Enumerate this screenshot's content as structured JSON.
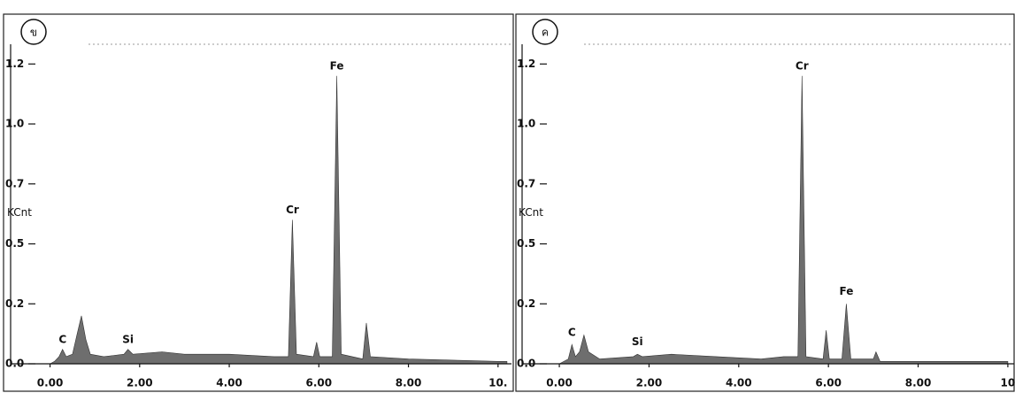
{
  "chart_data": [
    {
      "type": "area",
      "label": "ข",
      "y_label": "KCnt",
      "color": "#6e6e6e",
      "x": [
        0,
        0.1,
        0.2,
        0.28,
        0.36,
        0.5,
        0.6,
        0.7,
        0.8,
        0.9,
        1.2,
        1.65,
        1.74,
        1.85,
        2.5,
        3.0,
        4.0,
        5.0,
        5.32,
        5.41,
        5.5,
        5.88,
        5.95,
        6.02,
        6.3,
        6.4,
        6.5,
        6.98,
        7.06,
        7.15,
        8.0,
        9.0,
        10.0,
        10.2
      ],
      "values": [
        0,
        0.01,
        0.03,
        0.06,
        0.03,
        0.04,
        0.12,
        0.2,
        0.1,
        0.04,
        0.03,
        0.04,
        0.06,
        0.04,
        0.05,
        0.04,
        0.04,
        0.03,
        0.03,
        0.6,
        0.04,
        0.03,
        0.09,
        0.03,
        0.03,
        1.2,
        0.04,
        0.02,
        0.17,
        0.03,
        0.02,
        0.015,
        0.01,
        0.01
      ],
      "xlim": [
        -0.88,
        10.3
      ],
      "ylim": [
        0,
        1.443
      ],
      "xticks": [
        {
          "value": 0,
          "label": "0.00"
        },
        {
          "value": 2,
          "label": "2.00"
        },
        {
          "value": 4,
          "label": "4.00"
        },
        {
          "value": 6,
          "label": "6.00"
        },
        {
          "value": 8,
          "label": "8.00"
        },
        {
          "value": 10,
          "label": "10."
        }
      ],
      "yticks": [
        {
          "value": 0,
          "label": "0.0"
        },
        {
          "value": 0.25,
          "label": "0.2"
        },
        {
          "value": 0.5,
          "label": "0.5"
        },
        {
          "value": 0.75,
          "label": "0.7"
        },
        {
          "value": 1.0,
          "label": "1.0"
        },
        {
          "value": 1.25,
          "label": "1.2"
        }
      ],
      "annotations": [
        {
          "text": "C",
          "x": 0.28,
          "y": 0.1
        },
        {
          "text": "Si",
          "x": 1.74,
          "y": 0.1
        },
        {
          "text": "Cr",
          "x": 5.41,
          "y": 0.64
        },
        {
          "text": "Fe",
          "x": 6.4,
          "y": 1.24
        }
      ]
    },
    {
      "type": "area",
      "label": "ค",
      "y_label": "KCnt",
      "color": "#6e6e6e",
      "x": [
        0,
        0.2,
        0.28,
        0.36,
        0.45,
        0.55,
        0.65,
        0.9,
        1.65,
        1.74,
        1.85,
        2.5,
        3.5,
        4.5,
        5.0,
        5.32,
        5.41,
        5.5,
        5.88,
        5.95,
        6.02,
        6.3,
        6.4,
        6.5,
        7.0,
        7.06,
        7.15,
        8.0,
        10.0
      ],
      "values": [
        0,
        0.02,
        0.08,
        0.03,
        0.05,
        0.12,
        0.05,
        0.02,
        0.03,
        0.04,
        0.03,
        0.04,
        0.03,
        0.02,
        0.03,
        0.03,
        1.2,
        0.03,
        0.02,
        0.14,
        0.02,
        0.02,
        0.25,
        0.02,
        0.02,
        0.05,
        0.01,
        0.01,
        0.01
      ],
      "xlim": [
        -0.83,
        10.14
      ],
      "ylim": [
        0,
        1.443
      ],
      "xticks": [
        {
          "value": 0,
          "label": "0.00"
        },
        {
          "value": 2,
          "label": "2.00"
        },
        {
          "value": 4,
          "label": "4.00"
        },
        {
          "value": 6,
          "label": "6.00"
        },
        {
          "value": 8,
          "label": "8.00"
        },
        {
          "value": 10,
          "label": "10"
        }
      ],
      "yticks": [
        {
          "value": 0,
          "label": "0.0"
        },
        {
          "value": 0.25,
          "label": "0.2"
        },
        {
          "value": 0.5,
          "label": "0.5"
        },
        {
          "value": 0.75,
          "label": "0.7"
        },
        {
          "value": 1.0,
          "label": "1.0"
        },
        {
          "value": 1.25,
          "label": "1.2"
        }
      ],
      "annotations": [
        {
          "text": "C",
          "x": 0.28,
          "y": 0.13
        },
        {
          "text": "Si",
          "x": 1.74,
          "y": 0.09
        },
        {
          "text": "Cr",
          "x": 5.41,
          "y": 1.24
        },
        {
          "text": "Fe",
          "x": 6.4,
          "y": 0.3
        }
      ]
    }
  ]
}
